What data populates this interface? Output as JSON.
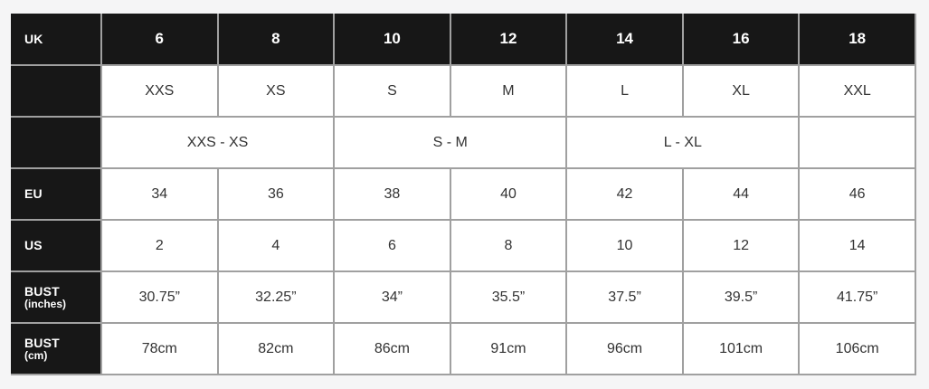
{
  "page": {
    "background": "#f5f5f6"
  },
  "colors": {
    "header_bg": "#171717",
    "header_text": "#ffffff",
    "cell_bg": "#ffffff",
    "cell_text": "#333333",
    "border": "#a0a0a0"
  },
  "chart_data": {
    "type": "table",
    "rows": [
      {
        "header": "UK",
        "style": "dark",
        "cells": [
          {
            "text": "6"
          },
          {
            "text": "8"
          },
          {
            "text": "10"
          },
          {
            "text": "12"
          },
          {
            "text": "14"
          },
          {
            "text": "16"
          },
          {
            "text": "18"
          }
        ]
      },
      {
        "header": "",
        "style": "light",
        "cells": [
          {
            "text": "XXS"
          },
          {
            "text": "XS"
          },
          {
            "text": "S"
          },
          {
            "text": "M"
          },
          {
            "text": "L"
          },
          {
            "text": "XL"
          },
          {
            "text": "XXL"
          }
        ]
      },
      {
        "header": "",
        "style": "light",
        "cells": [
          {
            "text": "XXS - XS",
            "span": 2
          },
          {
            "text": "S - M",
            "span": 2
          },
          {
            "text": "L - XL",
            "span": 2
          },
          {
            "text": "",
            "span": 1
          }
        ]
      },
      {
        "header": "EU",
        "style": "light",
        "cells": [
          {
            "text": "34"
          },
          {
            "text": "36"
          },
          {
            "text": "38"
          },
          {
            "text": "40"
          },
          {
            "text": "42"
          },
          {
            "text": "44"
          },
          {
            "text": "46"
          }
        ]
      },
      {
        "header": "US",
        "style": "light",
        "cells": [
          {
            "text": "2"
          },
          {
            "text": "4"
          },
          {
            "text": "6"
          },
          {
            "text": "8"
          },
          {
            "text": "10"
          },
          {
            "text": "12"
          },
          {
            "text": "14"
          }
        ]
      },
      {
        "header": "BUST",
        "header_sub": "(inches)",
        "style": "light",
        "cells": [
          {
            "text": "30.75”"
          },
          {
            "text": "32.25”"
          },
          {
            "text": "34”"
          },
          {
            "text": "35.5”"
          },
          {
            "text": "37.5”"
          },
          {
            "text": "39.5”"
          },
          {
            "text": "41.75”"
          }
        ]
      },
      {
        "header": "BUST",
        "header_sub": "(cm)",
        "style": "light",
        "cells": [
          {
            "text": "78cm"
          },
          {
            "text": "82cm"
          },
          {
            "text": "86cm"
          },
          {
            "text": "91cm"
          },
          {
            "text": "96cm"
          },
          {
            "text": "101cm"
          },
          {
            "text": "106cm"
          }
        ]
      }
    ]
  }
}
